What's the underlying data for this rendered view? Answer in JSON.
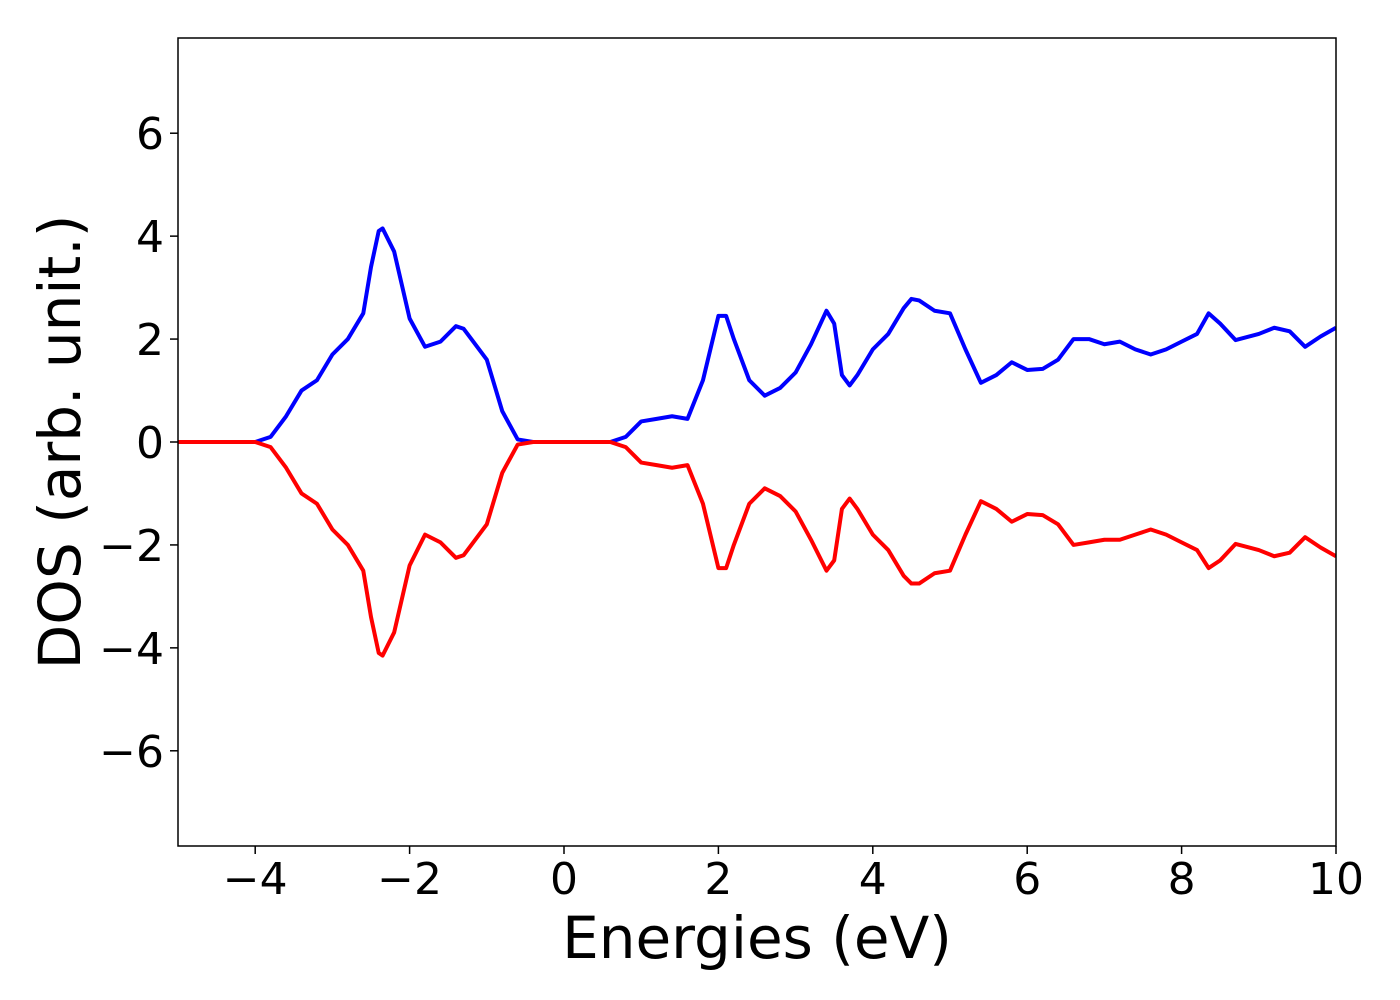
{
  "chart_data": {
    "type": "line",
    "x_label": "Energies (eV)",
    "y_label": "DOS (arb. unit.)",
    "xlim": [
      -5,
      10
    ],
    "ylim": [
      -7.85,
      7.85
    ],
    "xticks": [
      {
        "value": -4,
        "label": "−4"
      },
      {
        "value": -2,
        "label": "−2"
      },
      0,
      2,
      4,
      6,
      8,
      10
    ],
    "yticks": [
      {
        "value": -6,
        "label": "−6"
      },
      {
        "value": -4,
        "label": "−4"
      },
      {
        "value": -2,
        "label": "−2"
      },
      0,
      2,
      4,
      6
    ],
    "grid": false,
    "x": [
      -5,
      -4.2,
      -4,
      -3.8,
      -3.6,
      -3.4,
      -3.2,
      -3.0,
      -2.8,
      -2.6,
      -2.5,
      -2.4,
      -2.35,
      -2.2,
      -2.0,
      -1.8,
      -1.6,
      -1.4,
      -1.3,
      -1.2,
      -1.0,
      -0.8,
      -0.6,
      -0.4,
      0,
      0.6,
      0.8,
      1.0,
      1.2,
      1.4,
      1.6,
      1.8,
      2.0,
      2.1,
      2.2,
      2.4,
      2.6,
      2.8,
      3.0,
      3.2,
      3.4,
      3.5,
      3.6,
      3.7,
      3.8,
      4.0,
      4.2,
      4.4,
      4.5,
      4.6,
      4.8,
      5.0,
      5.2,
      5.4,
      5.6,
      5.8,
      6.0,
      6.2,
      6.4,
      6.6,
      6.8,
      7.0,
      7.2,
      7.4,
      7.6,
      7.8,
      8.0,
      8.2,
      8.35,
      8.5,
      8.7,
      9.0,
      9.2,
      9.4,
      9.6,
      9.8,
      10
    ],
    "series": [
      {
        "color": "#0000ff",
        "values": [
          0,
          0,
          0,
          0.1,
          0.5,
          1.0,
          1.2,
          1.7,
          2.0,
          2.5,
          3.4,
          4.1,
          4.15,
          3.7,
          2.4,
          1.85,
          1.95,
          2.25,
          2.2,
          2.0,
          1.6,
          0.6,
          0.05,
          0,
          0,
          0,
          0.1,
          0.4,
          0.45,
          0.5,
          0.45,
          1.2,
          2.45,
          2.45,
          2.0,
          1.2,
          0.9,
          1.05,
          1.35,
          1.9,
          2.55,
          2.3,
          1.3,
          1.1,
          1.3,
          1.8,
          2.1,
          2.6,
          2.78,
          2.75,
          2.55,
          2.5,
          1.8,
          1.15,
          1.3,
          1.55,
          1.4,
          1.42,
          1.6,
          2.0,
          2.0,
          1.9,
          1.95,
          1.8,
          1.7,
          1.8,
          1.95,
          2.1,
          2.5,
          2.3,
          1.98,
          2.1,
          2.22,
          2.15,
          1.85,
          2.05,
          2.22
        ]
      },
      {
        "color": "#ff0000",
        "values": [
          0,
          0,
          0,
          -0.1,
          -0.5,
          -1.0,
          -1.2,
          -1.7,
          -2.0,
          -2.5,
          -3.4,
          -4.1,
          -4.15,
          -3.7,
          -2.4,
          -1.8,
          -1.95,
          -2.25,
          -2.2,
          -2.0,
          -1.6,
          -0.6,
          -0.05,
          0,
          0,
          0,
          -0.1,
          -0.4,
          -0.45,
          -0.5,
          -0.45,
          -1.2,
          -2.45,
          -2.45,
          -2.0,
          -1.2,
          -0.9,
          -1.05,
          -1.35,
          -1.9,
          -2.5,
          -2.3,
          -1.3,
          -1.1,
          -1.3,
          -1.8,
          -2.1,
          -2.6,
          -2.75,
          -2.75,
          -2.55,
          -2.5,
          -1.8,
          -1.15,
          -1.3,
          -1.55,
          -1.4,
          -1.42,
          -1.6,
          -2.0,
          -1.95,
          -1.9,
          -1.9,
          -1.8,
          -1.7,
          -1.8,
          -1.95,
          -2.1,
          -2.45,
          -2.3,
          -1.98,
          -2.1,
          -2.22,
          -2.15,
          -1.85,
          -2.05,
          -2.22
        ]
      }
    ]
  }
}
